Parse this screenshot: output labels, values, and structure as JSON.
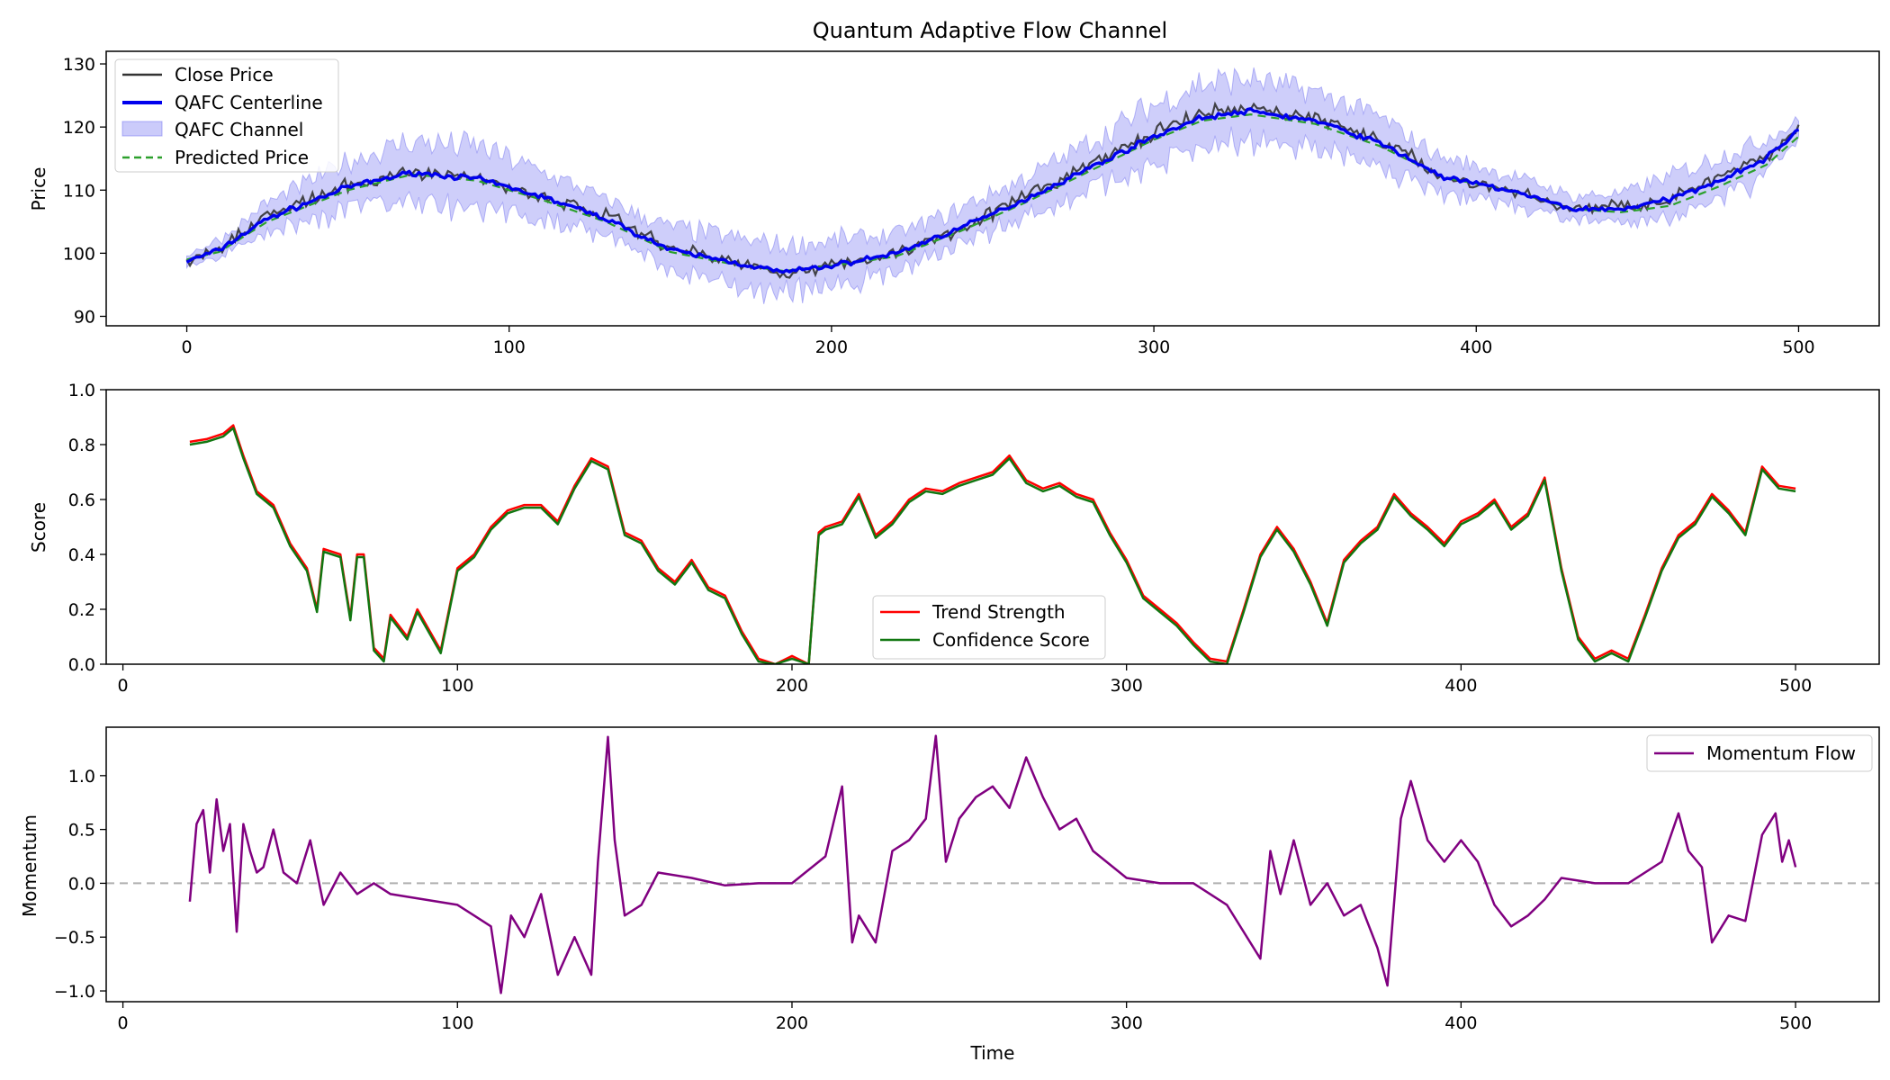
{
  "chart_data": [
    {
      "type": "line",
      "title": "Quantum Adaptive Flow Channel",
      "xlabel": "",
      "ylabel": "Price",
      "xlim": [
        -25,
        525
      ],
      "ylim": [
        88.5,
        132
      ],
      "xticks": [
        0,
        100,
        200,
        300,
        400,
        500
      ],
      "yticks": [
        90,
        100,
        110,
        120,
        130
      ],
      "legend_position": "top-left",
      "x_keypoints": [
        0,
        10,
        25,
        50,
        70,
        90,
        110,
        130,
        150,
        170,
        185,
        200,
        220,
        240,
        260,
        280,
        300,
        315,
        330,
        350,
        370,
        390,
        410,
        430,
        445,
        460,
        475,
        490,
        500
      ],
      "series": [
        {
          "name": "Close Price",
          "kind": "line",
          "color": "#333333",
          "values": [
            99,
            101,
            106,
            110.5,
            113,
            112,
            109,
            106,
            101,
            98.5,
            97,
            98,
            100,
            104,
            109,
            114,
            119,
            122,
            123,
            121.5,
            118,
            112,
            110,
            107,
            107.5,
            108.5,
            112,
            115,
            120
          ]
        },
        {
          "name": "QAFC Centerline",
          "kind": "line",
          "color": "#0000ee",
          "values": [
            98.7,
            100.5,
            105.5,
            110.5,
            112.8,
            111.8,
            109,
            105.5,
            100.5,
            98.5,
            97,
            98,
            100,
            104,
            108.5,
            113.5,
            118.5,
            121.5,
            122.5,
            121,
            117.5,
            112,
            110,
            107,
            107,
            108.5,
            111.5,
            115,
            119.6
          ]
        },
        {
          "name": "QAFC Channel",
          "kind": "band",
          "color": "#6b6bf0",
          "half_width": [
            1,
            1.5,
            2.5,
            4,
            5,
            5,
            4,
            3,
            3.5,
            4,
            4,
            4,
            3,
            3,
            3.5,
            4,
            5,
            5.5,
            5,
            4.5,
            4,
            3,
            2.5,
            2,
            2.5,
            3.5,
            4,
            3,
            1.5
          ]
        },
        {
          "name": "Predicted Price",
          "kind": "dashed",
          "color": "#2ca02c",
          "values": [
            99,
            100.2,
            105,
            110,
            112.5,
            111.5,
            108.5,
            105,
            100.2,
            98.2,
            97.2,
            98,
            99.5,
            103.5,
            108,
            113,
            118,
            121,
            122,
            120.5,
            117,
            112,
            110,
            107,
            106.5,
            107.5,
            110.5,
            114,
            118.5
          ]
        }
      ]
    },
    {
      "type": "line",
      "title": "",
      "xlabel": "",
      "ylabel": "Score",
      "xlim": [
        -5,
        525
      ],
      "ylim": [
        0,
        1
      ],
      "xticks": [
        0,
        100,
        200,
        300,
        400,
        500
      ],
      "yticks": [
        "0.0",
        "0.2",
        "0.4",
        "0.6",
        "0.8",
        "1.0"
      ],
      "legend_position": "lower-center",
      "x": [
        20,
        25,
        30,
        33,
        36,
        40,
        45,
        50,
        55,
        58,
        60,
        65,
        68,
        70,
        72,
        75,
        78,
        80,
        85,
        88,
        95,
        100,
        105,
        110,
        115,
        120,
        125,
        130,
        135,
        140,
        145,
        150,
        155,
        160,
        165,
        170,
        175,
        180,
        185,
        190,
        195,
        200,
        205,
        208,
        210,
        215,
        220,
        225,
        230,
        235,
        240,
        245,
        250,
        255,
        260,
        265,
        270,
        275,
        280,
        285,
        290,
        295,
        300,
        305,
        310,
        315,
        320,
        325,
        330,
        335,
        340,
        345,
        350,
        355,
        360,
        365,
        370,
        375,
        380,
        385,
        390,
        395,
        400,
        405,
        410,
        415,
        420,
        425,
        430,
        435,
        440,
        445,
        450,
        455,
        460,
        465,
        470,
        475,
        480,
        485,
        490,
        495,
        500
      ],
      "series": [
        {
          "name": "Trend Strength",
          "color": "#ff0000",
          "values": [
            0.81,
            0.82,
            0.84,
            0.87,
            0.76,
            0.63,
            0.58,
            0.44,
            0.35,
            0.2,
            0.42,
            0.4,
            0.17,
            0.4,
            0.4,
            0.06,
            0.02,
            0.18,
            0.1,
            0.2,
            0.05,
            0.35,
            0.4,
            0.5,
            0.56,
            0.58,
            0.58,
            0.52,
            0.65,
            0.75,
            0.72,
            0.48,
            0.45,
            0.35,
            0.3,
            0.38,
            0.28,
            0.25,
            0.12,
            0.02,
            0.0,
            0.03,
            0.0,
            0.48,
            0.5,
            0.52,
            0.62,
            0.47,
            0.52,
            0.6,
            0.64,
            0.63,
            0.66,
            0.68,
            0.7,
            0.76,
            0.67,
            0.64,
            0.66,
            0.62,
            0.6,
            0.48,
            0.38,
            0.25,
            0.2,
            0.15,
            0.08,
            0.02,
            0.01,
            0.2,
            0.4,
            0.5,
            0.42,
            0.3,
            0.15,
            0.38,
            0.45,
            0.5,
            0.62,
            0.55,
            0.5,
            0.44,
            0.52,
            0.55,
            0.6,
            0.5,
            0.55,
            0.68,
            0.35,
            0.1,
            0.02,
            0.05,
            0.02,
            0.18,
            0.35,
            0.47,
            0.52,
            0.62,
            0.56,
            0.48,
            0.72,
            0.65,
            0.64
          ]
        },
        {
          "name": "Confidence Score",
          "color": "#117711",
          "values": [
            0.8,
            0.81,
            0.83,
            0.86,
            0.75,
            0.62,
            0.57,
            0.43,
            0.34,
            0.19,
            0.41,
            0.39,
            0.16,
            0.39,
            0.39,
            0.05,
            0.01,
            0.17,
            0.09,
            0.19,
            0.04,
            0.34,
            0.39,
            0.49,
            0.55,
            0.57,
            0.57,
            0.51,
            0.64,
            0.74,
            0.71,
            0.47,
            0.44,
            0.34,
            0.29,
            0.37,
            0.27,
            0.24,
            0.11,
            0.01,
            0.0,
            0.02,
            0.0,
            0.47,
            0.49,
            0.51,
            0.61,
            0.46,
            0.51,
            0.59,
            0.63,
            0.62,
            0.65,
            0.67,
            0.69,
            0.75,
            0.66,
            0.63,
            0.65,
            0.61,
            0.59,
            0.47,
            0.37,
            0.24,
            0.19,
            0.14,
            0.07,
            0.01,
            0.0,
            0.19,
            0.39,
            0.49,
            0.41,
            0.29,
            0.14,
            0.37,
            0.44,
            0.49,
            0.61,
            0.54,
            0.49,
            0.43,
            0.51,
            0.54,
            0.59,
            0.49,
            0.54,
            0.67,
            0.34,
            0.09,
            0.01,
            0.04,
            0.01,
            0.17,
            0.34,
            0.46,
            0.51,
            0.61,
            0.55,
            0.47,
            0.71,
            0.64,
            0.63
          ]
        }
      ]
    },
    {
      "type": "line",
      "title": "",
      "xlabel": "Time",
      "ylabel": "Momentum",
      "xlim": [
        -5,
        525
      ],
      "ylim": [
        -1.1,
        1.45
      ],
      "xticks": [
        0,
        100,
        200,
        300,
        400,
        500
      ],
      "yticks": [
        "−1.0",
        "−0.5",
        "0.0",
        "0.5",
        "1.0"
      ],
      "reference_line": {
        "y": 0,
        "color": "#b0b0b0",
        "style": "dashed"
      },
      "legend_position": "top-right",
      "x": [
        20,
        22,
        24,
        26,
        28,
        30,
        32,
        34,
        36,
        38,
        40,
        42,
        45,
        48,
        52,
        56,
        60,
        65,
        70,
        75,
        80,
        90,
        100,
        105,
        110,
        113,
        116,
        120,
        125,
        130,
        135,
        140,
        142,
        145,
        147,
        150,
        155,
        160,
        170,
        180,
        190,
        200,
        210,
        215,
        218,
        220,
        225,
        230,
        235,
        240,
        243,
        246,
        250,
        255,
        260,
        265,
        270,
        275,
        280,
        285,
        290,
        300,
        310,
        320,
        330,
        340,
        343,
        346,
        350,
        355,
        360,
        365,
        370,
        375,
        378,
        382,
        385,
        390,
        395,
        400,
        405,
        410,
        415,
        420,
        425,
        430,
        440,
        450,
        460,
        465,
        468,
        472,
        475,
        480,
        485,
        490,
        494,
        496,
        498,
        500
      ],
      "series": [
        {
          "name": "Momentum Flow",
          "color": "#800080",
          "values": [
            -0.17,
            0.55,
            0.68,
            0.1,
            0.78,
            0.3,
            0.55,
            -0.45,
            0.55,
            0.3,
            0.1,
            0.15,
            0.5,
            0.1,
            0.0,
            0.4,
            -0.2,
            0.1,
            -0.1,
            0.0,
            -0.1,
            -0.15,
            -0.2,
            -0.3,
            -0.4,
            -1.02,
            -0.3,
            -0.5,
            -0.1,
            -0.85,
            -0.5,
            -0.85,
            0.2,
            1.36,
            0.4,
            -0.3,
            -0.2,
            0.1,
            0.05,
            -0.02,
            0.0,
            0.0,
            0.25,
            0.9,
            -0.55,
            -0.3,
            -0.55,
            0.3,
            0.4,
            0.6,
            1.37,
            0.2,
            0.6,
            0.8,
            0.9,
            0.7,
            1.17,
            0.8,
            0.5,
            0.6,
            0.3,
            0.05,
            0.0,
            0.0,
            -0.2,
            -0.7,
            0.3,
            -0.1,
            0.4,
            -0.2,
            0.0,
            -0.3,
            -0.2,
            -0.6,
            -0.95,
            0.6,
            0.95,
            0.4,
            0.2,
            0.4,
            0.2,
            -0.2,
            -0.4,
            -0.3,
            -0.15,
            0.05,
            0.0,
            0.0,
            0.2,
            0.65,
            0.3,
            0.15,
            -0.55,
            -0.3,
            -0.35,
            0.45,
            0.65,
            0.2,
            0.4,
            0.15
          ]
        }
      ]
    }
  ]
}
